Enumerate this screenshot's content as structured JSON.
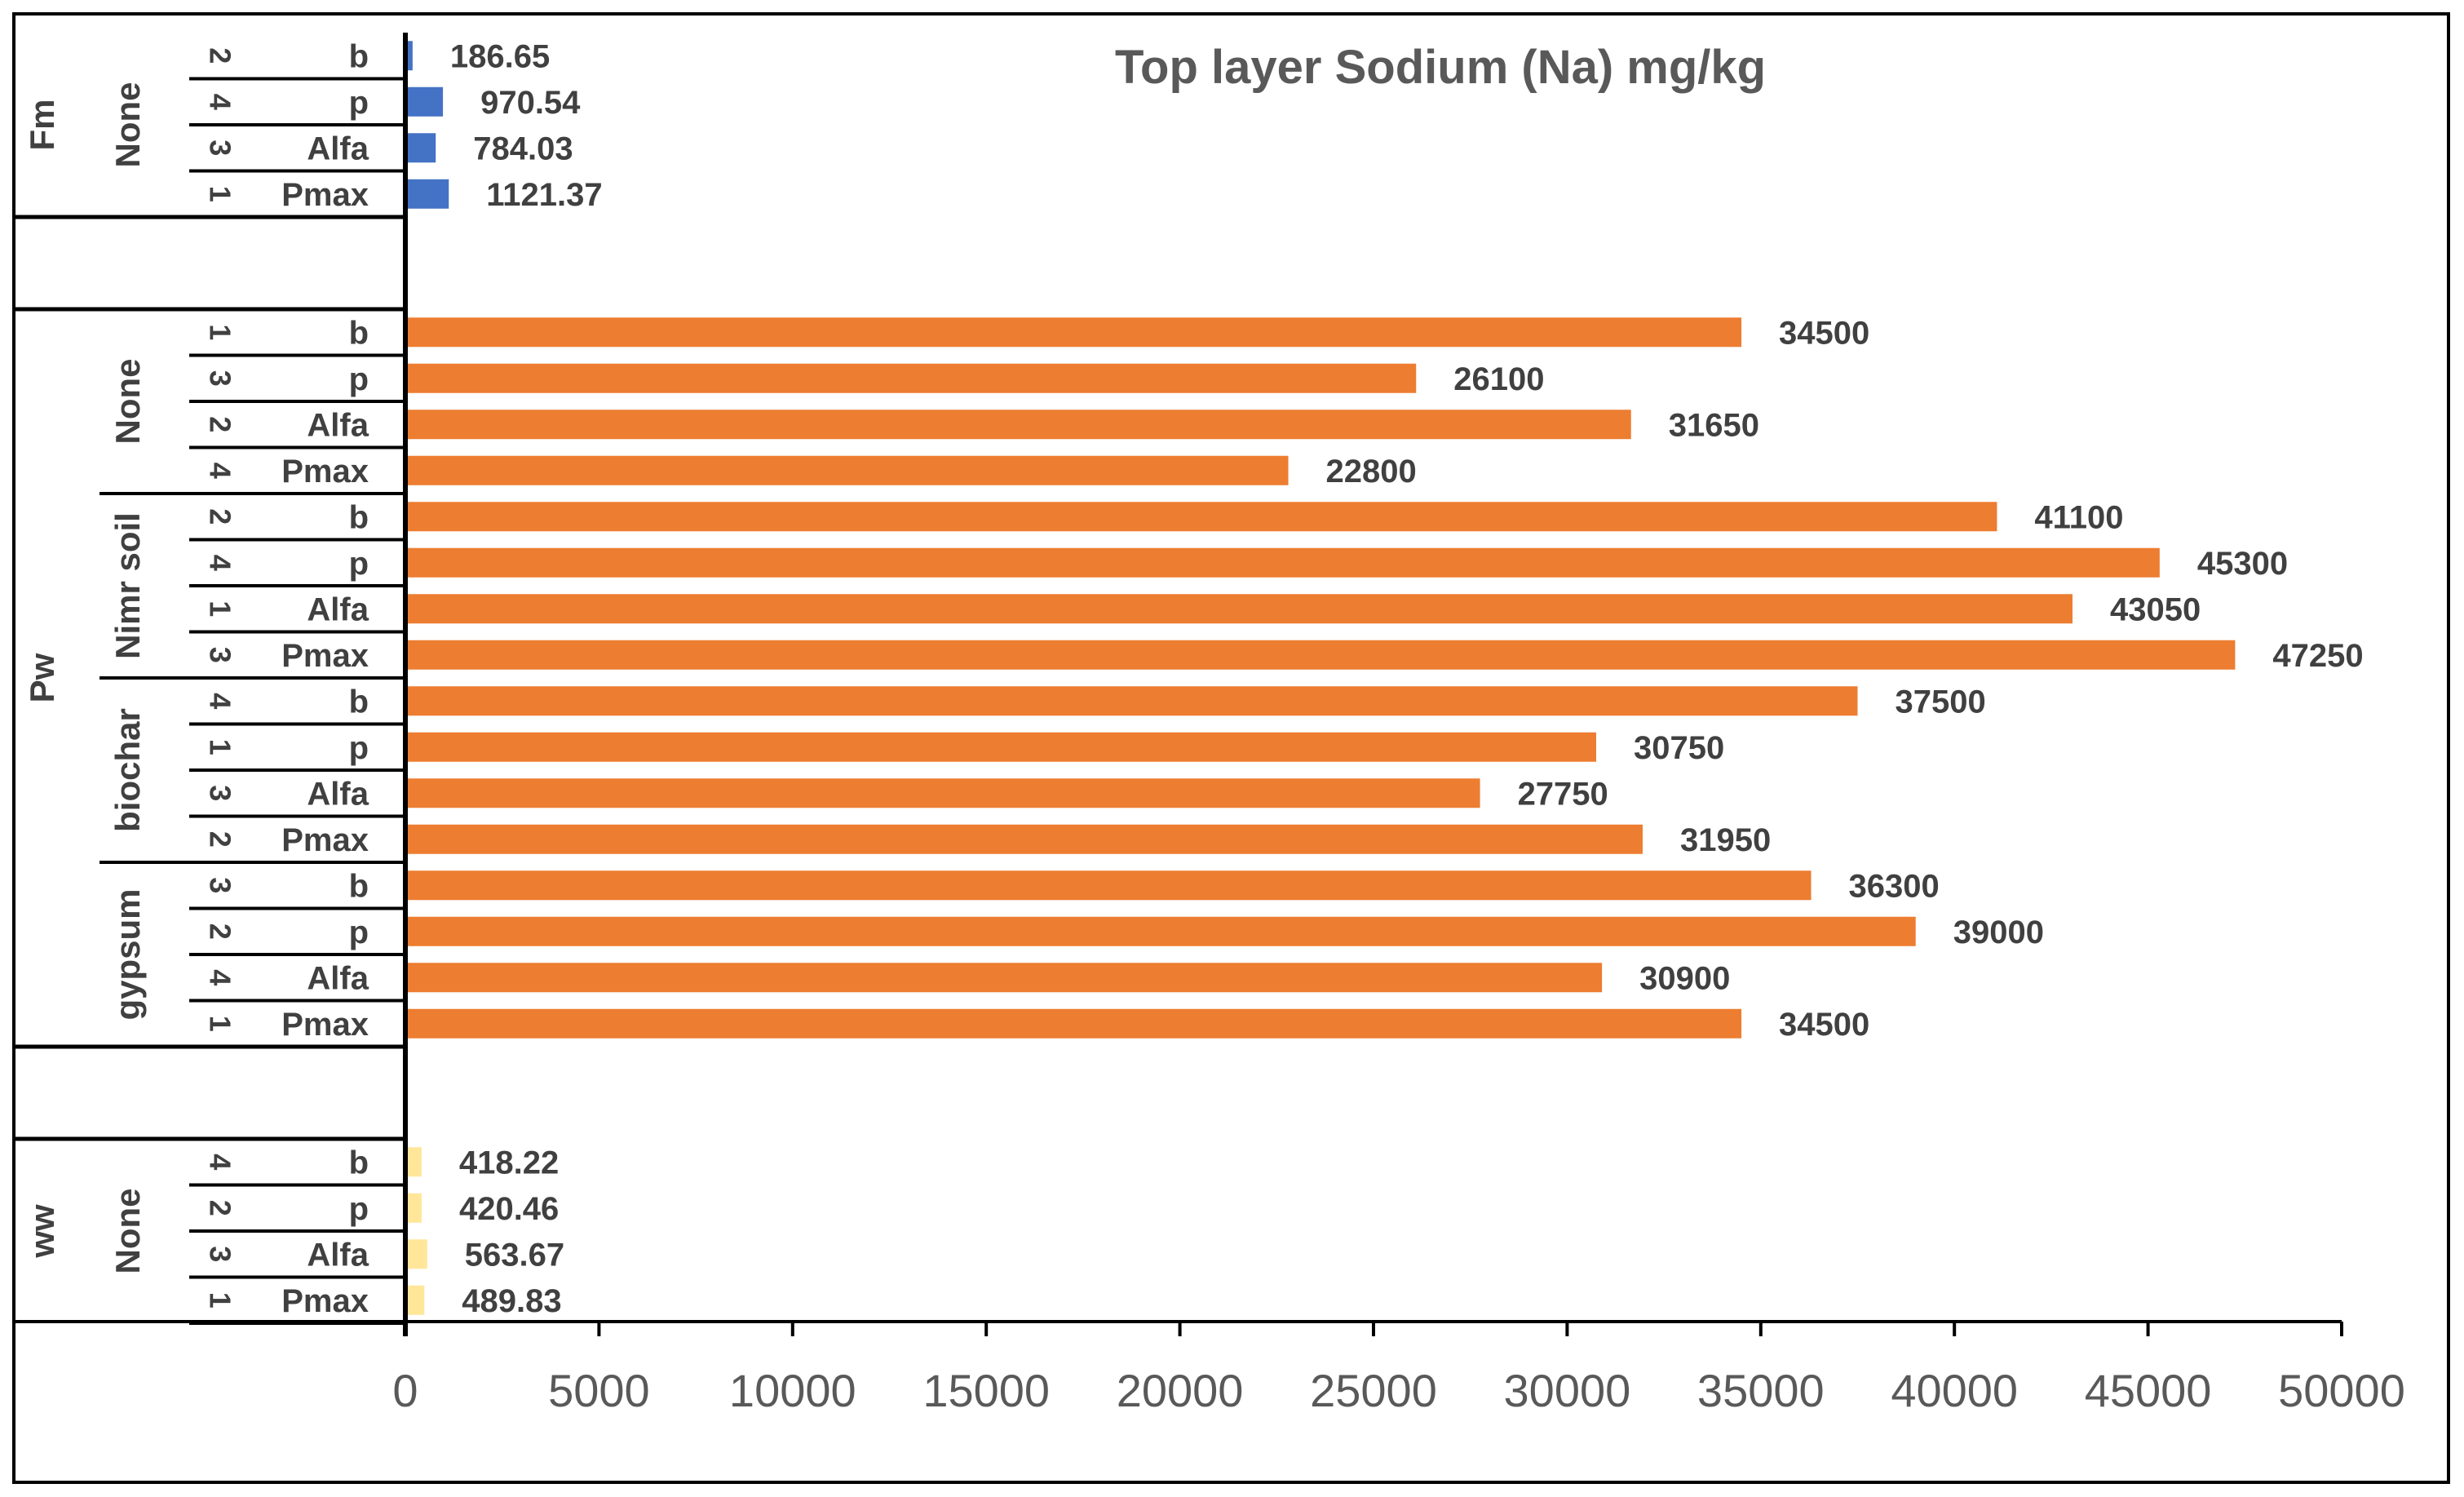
{
  "chart_data": {
    "type": "bar",
    "orientation": "horizontal",
    "title": "Top layer Sodium (Na) mg/kg",
    "xlabel": "",
    "ylabel": "",
    "xlim": [
      0,
      50000
    ],
    "xticks": [
      0,
      5000,
      10000,
      15000,
      20000,
      25000,
      30000,
      35000,
      40000,
      45000,
      50000
    ],
    "xtick_labels": [
      "0",
      "5000",
      "10000",
      "15000",
      "20000",
      "25000",
      "30000",
      "35000",
      "40000",
      "45000",
      "50000"
    ],
    "grid": false,
    "legend": "none",
    "colors": {
      "Fm": "#4472C4",
      "Pw": "#ED7D31",
      "ww": "#FFE699"
    },
    "groups": [
      {
        "name": "Fm",
        "color": "#4472C4",
        "subgroups": [
          {
            "name": "None",
            "rows": [
              {
                "rep": "2",
                "category": "b",
                "value": 186.65,
                "label": "186.65"
              },
              {
                "rep": "4",
                "category": "p",
                "value": 970.54,
                "label": "970.54"
              },
              {
                "rep": "3",
                "category": "Alfa",
                "value": 784.03,
                "label": "784.03"
              },
              {
                "rep": "1",
                "category": "Pmax",
                "value": 1121.37,
                "label": "1121.37"
              }
            ]
          }
        ]
      },
      {
        "name": "Pw",
        "color": "#ED7D31",
        "subgroups": [
          {
            "name": "None",
            "rows": [
              {
                "rep": "1",
                "category": "b",
                "value": 34500,
                "label": "34500"
              },
              {
                "rep": "3",
                "category": "p",
                "value": 26100,
                "label": "26100"
              },
              {
                "rep": "2",
                "category": "Alfa",
                "value": 31650,
                "label": "31650"
              },
              {
                "rep": "4",
                "category": "Pmax",
                "value": 22800,
                "label": "22800"
              }
            ]
          },
          {
            "name": "Nimr soil",
            "rows": [
              {
                "rep": "2",
                "category": "b",
                "value": 41100,
                "label": "41100"
              },
              {
                "rep": "4",
                "category": "p",
                "value": 45300,
                "label": "45300"
              },
              {
                "rep": "1",
                "category": "Alfa",
                "value": 43050,
                "label": "43050"
              },
              {
                "rep": "3",
                "category": "Pmax",
                "value": 47250,
                "label": "47250"
              }
            ]
          },
          {
            "name": "biochar",
            "rows": [
              {
                "rep": "4",
                "category": "b",
                "value": 37500,
                "label": "37500"
              },
              {
                "rep": "1",
                "category": "p",
                "value": 30750,
                "label": "30750"
              },
              {
                "rep": "3",
                "category": "Alfa",
                "value": 27750,
                "label": "27750"
              },
              {
                "rep": "2",
                "category": "Pmax",
                "value": 31950,
                "label": "31950"
              }
            ]
          },
          {
            "name": "gypsum",
            "rows": [
              {
                "rep": "3",
                "category": "b",
                "value": 36300,
                "label": "36300"
              },
              {
                "rep": "2",
                "category": "p",
                "value": 39000,
                "label": "39000"
              },
              {
                "rep": "4",
                "category": "Alfa",
                "value": 30900,
                "label": "30900"
              },
              {
                "rep": "1",
                "category": "Pmax",
                "value": 34500,
                "label": "34500"
              }
            ]
          }
        ]
      },
      {
        "name": "ww",
        "color": "#FFE699",
        "subgroups": [
          {
            "name": "None",
            "rows": [
              {
                "rep": "4",
                "category": "b",
                "value": 418.22,
                "label": "418.22"
              },
              {
                "rep": "2",
                "category": "p",
                "value": 420.46,
                "label": "420.46"
              },
              {
                "rep": "3",
                "category": "Alfa",
                "value": 563.67,
                "label": "563.67"
              },
              {
                "rep": "1",
                "category": "Pmax",
                "value": 489.83,
                "label": "489.83"
              }
            ]
          }
        ]
      }
    ]
  }
}
